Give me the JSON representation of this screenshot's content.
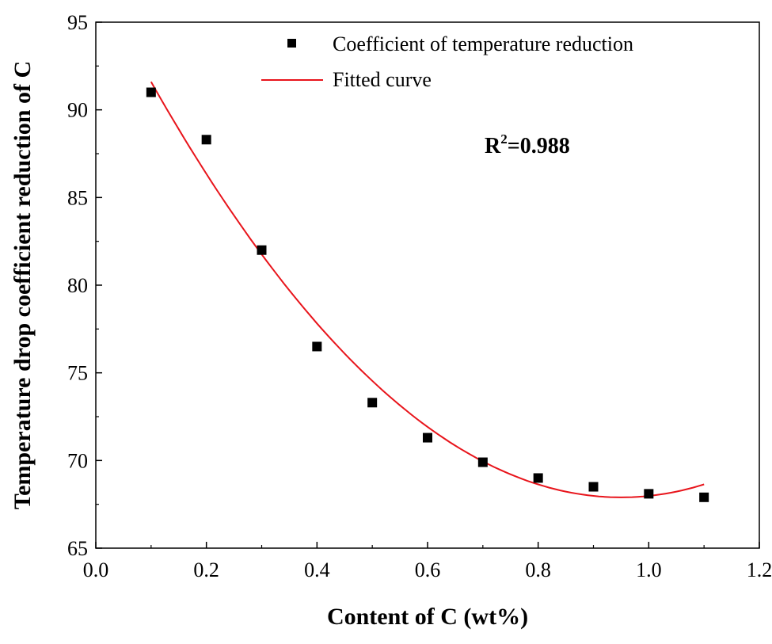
{
  "chart_data": {
    "type": "scatter",
    "title": "",
    "xlabel": "Content of C (wt%)",
    "ylabel": "Temperature drop coefficient reduction of C",
    "xlim": [
      0.0,
      1.2
    ],
    "ylim": [
      65,
      95
    ],
    "xticks": [
      "0.0",
      "0.2",
      "0.4",
      "0.6",
      "0.8",
      "1.0",
      "1.2"
    ],
    "xtick_values": [
      0.0,
      0.2,
      0.4,
      0.6,
      0.8,
      1.0,
      1.2
    ],
    "yticks": [
      "65",
      "70",
      "75",
      "80",
      "85",
      "90",
      "95"
    ],
    "ytick_values": [
      65,
      70,
      75,
      80,
      85,
      90,
      95
    ],
    "grid": false,
    "legend_position": "top-right",
    "series": [
      {
        "name": "Coefficient of temperature reduction",
        "kind": "scatter",
        "color": "#000000",
        "x": [
          0.1,
          0.2,
          0.3,
          0.4,
          0.5,
          0.6,
          0.7,
          0.8,
          0.9,
          1.0,
          1.1
        ],
        "y": [
          91.0,
          88.3,
          82.0,
          76.5,
          73.3,
          71.3,
          69.9,
          69.0,
          68.5,
          68.1,
          67.9
        ]
      },
      {
        "name": "Fitted curve",
        "kind": "line",
        "color": "#e8141b",
        "fit": "quadratic",
        "coefficients": [
          32.8,
          -62.32,
          97.5
        ],
        "x_range": [
          0.1,
          1.1
        ]
      }
    ],
    "annotation": {
      "base": "R",
      "sup": "2",
      "text": "=0.988"
    }
  }
}
